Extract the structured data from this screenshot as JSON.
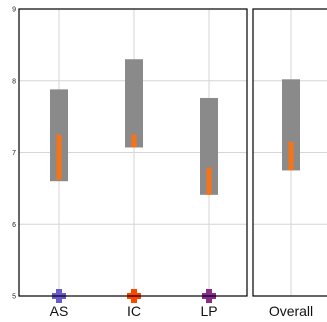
{
  "chart_data": [
    {
      "type": "bar",
      "panel": "main",
      "ylim": [
        5,
        9
      ],
      "yticks": [
        5,
        6,
        7,
        8,
        9
      ],
      "ytick_labels": [
        "5",
        "6",
        "7",
        "8",
        "9"
      ],
      "grid": true,
      "categories": [
        "AS",
        "IC",
        "LP"
      ],
      "range_bars": [
        {
          "category": "AS",
          "low": 6.6,
          "high": 7.88,
          "inner_low": 6.62,
          "inner_high": 7.25
        },
        {
          "category": "IC",
          "low": 7.07,
          "high": 8.3,
          "inner_low": 7.07,
          "inner_high": 7.25
        },
        {
          "category": "LP",
          "low": 6.41,
          "high": 7.76,
          "inner_low": 6.41,
          "inner_high": 6.79
        }
      ],
      "markers": [
        {
          "category": "AS",
          "value": 5.0,
          "color": "#6a5acd",
          "shape": "cross"
        },
        {
          "category": "IC",
          "value": 5.0,
          "color": "#ff4500",
          "shape": "cross"
        },
        {
          "category": "LP",
          "value": 5.0,
          "color": "#8b2d8b",
          "shape": "cross"
        }
      ],
      "colors": {
        "outer": "#8a8a8a",
        "inner": "#f97316",
        "grid": "#d6d6d6",
        "frame": "#000000"
      }
    },
    {
      "type": "bar",
      "panel": "overall",
      "ylim": [
        5,
        9
      ],
      "grid": true,
      "categories": [
        "Overall"
      ],
      "range_bars": [
        {
          "category": "Overall",
          "low": 6.75,
          "high": 8.02,
          "inner_low": 6.75,
          "inner_high": 7.15
        }
      ],
      "colors": {
        "outer": "#8a8a8a",
        "inner": "#f97316",
        "grid": "#d6d6d6",
        "frame": "#000000"
      }
    }
  ]
}
